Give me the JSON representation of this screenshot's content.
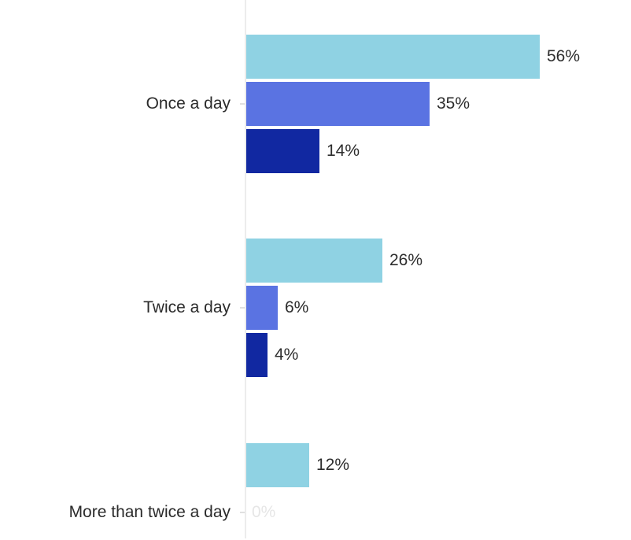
{
  "chart_data": {
    "type": "bar",
    "orientation": "horizontal",
    "title": "",
    "xlabel": "",
    "ylabel": "",
    "xlim": [
      0,
      60
    ],
    "grid": false,
    "legend": "none",
    "value_unit": "%",
    "categories": [
      "Once a day",
      "Twice a day",
      "More than twice a day"
    ],
    "series": [
      {
        "name": "light-blue-series",
        "color": "#8fd2e3",
        "values": [
          56,
          26,
          12
        ]
      },
      {
        "name": "medium-blue-series",
        "color": "#5a73e2",
        "values": [
          35,
          6,
          0
        ]
      },
      {
        "name": "dark-blue-series",
        "color": "#1128a1",
        "values": [
          14,
          4,
          null
        ]
      }
    ],
    "value_labels": [
      [
        "56%",
        "26%",
        "12%"
      ],
      [
        "35%",
        "6%",
        "0%"
      ],
      [
        "14%",
        "4%",
        null
      ]
    ]
  },
  "colors": {
    "background": "#ffffff",
    "axis_line": "#ececec",
    "category_tick": "#e0e0e0",
    "category_label_text": "#2b2b2b",
    "value_label_text": "#2d2d2d",
    "zero_value_label_text": "#e6e6e6"
  }
}
